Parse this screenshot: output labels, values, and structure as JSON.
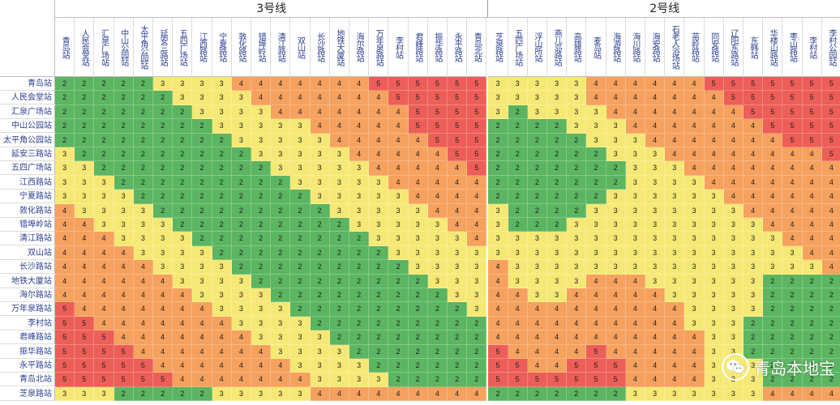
{
  "chart_data": {
    "type": "heatmap",
    "line_headers": [
      {
        "label": "3号线",
        "col_start": 0,
        "col_end": 20
      },
      {
        "label": "2号线",
        "col_start": 21,
        "col_end": 38
      }
    ],
    "columns": [
      "青岛站",
      "人民会堂站",
      "汇泉广场站",
      "中山公园站",
      "太平角公园站",
      "延安三路站",
      "五四广场站",
      "江西路站",
      "宁夏路站",
      "敦化路站",
      "错埠岭站",
      "清江路站",
      "双山站",
      "长沙路站",
      "地铁大厦站",
      "海尔路站",
      "万年泉路站",
      "李村站",
      "君峰路站",
      "振华路站",
      "永平路站",
      "青岛北站",
      "芝泉路站",
      "五四广场站",
      "浮山所站",
      "燕儿岛路站",
      "高雄路站",
      "麦岛站",
      "海游路站",
      "海川路站",
      "海安路站",
      "石老人浴场站",
      "苗岭路站",
      "同安路站",
      "辽阳东路站",
      "东韩站",
      "华楼山路站",
      "枣山路站",
      "李村站",
      "李村公园站"
    ],
    "rows": [
      "青岛站",
      "人民会堂站",
      "汇泉广场站",
      "中山公园站",
      "太平角公园站",
      "延安三路站",
      "五四广场站",
      "江西路站",
      "宁夏路站",
      "敦化路站",
      "错埠岭站",
      "清江路站",
      "双山站",
      "长沙路站",
      "地铁大厦站",
      "海尔路站",
      "万年泉路站",
      "李村站",
      "君峰路站",
      "振华路站",
      "永平路站",
      "青岛北站",
      "芝泉路站"
    ],
    "values": [
      [
        2,
        2,
        2,
        2,
        2,
        3,
        3,
        3,
        3,
        4,
        4,
        4,
        4,
        4,
        4,
        4,
        5,
        5,
        5,
        5,
        5,
        5,
        3,
        3,
        3,
        3,
        3,
        4,
        4,
        4,
        4,
        4,
        4,
        5,
        5,
        5,
        5,
        5,
        5,
        5
      ],
      [
        2,
        2,
        2,
        2,
        2,
        2,
        3,
        3,
        3,
        3,
        4,
        4,
        4,
        4,
        4,
        4,
        4,
        5,
        5,
        5,
        5,
        5,
        3,
        3,
        3,
        3,
        3,
        4,
        4,
        4,
        4,
        4,
        4,
        4,
        5,
        5,
        5,
        5,
        5,
        5
      ],
      [
        2,
        2,
        2,
        2,
        2,
        2,
        2,
        3,
        3,
        3,
        3,
        4,
        4,
        4,
        4,
        4,
        4,
        4,
        5,
        5,
        5,
        5,
        3,
        2,
        3,
        3,
        3,
        3,
        4,
        4,
        4,
        4,
        4,
        4,
        4,
        5,
        5,
        5,
        5,
        5
      ],
      [
        2,
        2,
        2,
        2,
        2,
        2,
        2,
        2,
        3,
        3,
        3,
        3,
        3,
        4,
        4,
        4,
        4,
        4,
        5,
        5,
        5,
        5,
        2,
        2,
        2,
        2,
        3,
        3,
        3,
        4,
        4,
        4,
        4,
        4,
        4,
        4,
        5,
        5,
        5,
        5
      ],
      [
        2,
        2,
        2,
        2,
        2,
        2,
        2,
        2,
        2,
        3,
        3,
        3,
        3,
        3,
        4,
        4,
        4,
        4,
        4,
        5,
        5,
        5,
        2,
        2,
        2,
        2,
        2,
        3,
        3,
        3,
        4,
        4,
        4,
        4,
        4,
        4,
        4,
        5,
        5,
        5
      ],
      [
        3,
        2,
        2,
        2,
        2,
        2,
        2,
        2,
        2,
        2,
        3,
        3,
        3,
        3,
        3,
        4,
        4,
        4,
        4,
        4,
        5,
        5,
        2,
        2,
        2,
        2,
        2,
        2,
        3,
        3,
        3,
        4,
        4,
        4,
        4,
        4,
        4,
        4,
        4,
        5
      ],
      [
        3,
        3,
        2,
        2,
        2,
        2,
        2,
        2,
        2,
        2,
        2,
        3,
        3,
        3,
        3,
        3,
        4,
        4,
        4,
        4,
        4,
        5,
        2,
        2,
        2,
        2,
        2,
        2,
        2,
        3,
        3,
        3,
        4,
        4,
        4,
        4,
        4,
        4,
        4,
        4
      ],
      [
        3,
        3,
        3,
        2,
        2,
        2,
        2,
        2,
        2,
        2,
        2,
        2,
        3,
        3,
        3,
        3,
        3,
        4,
        4,
        4,
        4,
        4,
        2,
        2,
        2,
        2,
        2,
        2,
        2,
        3,
        3,
        3,
        3,
        4,
        4,
        4,
        4,
        4,
        4,
        4
      ],
      [
        3,
        3,
        3,
        3,
        2,
        2,
        2,
        2,
        2,
        2,
        2,
        2,
        2,
        3,
        3,
        3,
        3,
        3,
        4,
        4,
        4,
        4,
        2,
        2,
        2,
        2,
        2,
        2,
        3,
        3,
        3,
        3,
        3,
        3,
        4,
        4,
        4,
        4,
        4,
        4
      ],
      [
        4,
        3,
        3,
        3,
        3,
        2,
        2,
        2,
        2,
        2,
        2,
        2,
        2,
        2,
        3,
        3,
        3,
        3,
        3,
        4,
        4,
        4,
        3,
        2,
        2,
        2,
        2,
        3,
        3,
        3,
        3,
        3,
        3,
        3,
        3,
        4,
        4,
        4,
        4,
        4
      ],
      [
        4,
        4,
        3,
        3,
        3,
        3,
        2,
        2,
        2,
        2,
        2,
        2,
        2,
        2,
        2,
        3,
        3,
        3,
        3,
        3,
        4,
        4,
        3,
        2,
        2,
        2,
        3,
        3,
        3,
        3,
        3,
        3,
        3,
        3,
        3,
        3,
        4,
        4,
        4,
        4
      ],
      [
        4,
        4,
        4,
        3,
        3,
        3,
        3,
        2,
        2,
        2,
        2,
        2,
        2,
        2,
        2,
        2,
        3,
        3,
        3,
        3,
        3,
        4,
        3,
        3,
        3,
        3,
        3,
        3,
        3,
        3,
        3,
        3,
        3,
        3,
        3,
        3,
        3,
        4,
        4,
        4
      ],
      [
        4,
        4,
        4,
        4,
        3,
        3,
        3,
        3,
        2,
        2,
        2,
        2,
        2,
        2,
        2,
        2,
        2,
        3,
        3,
        3,
        3,
        3,
        3,
        3,
        3,
        3,
        3,
        3,
        3,
        3,
        3,
        3,
        3,
        3,
        3,
        3,
        3,
        3,
        4,
        4
      ],
      [
        4,
        4,
        4,
        4,
        4,
        3,
        3,
        3,
        3,
        2,
        2,
        2,
        2,
        2,
        2,
        2,
        2,
        2,
        3,
        3,
        3,
        3,
        4,
        3,
        3,
        3,
        3,
        3,
        3,
        3,
        3,
        3,
        3,
        3,
        3,
        3,
        3,
        3,
        3,
        4
      ],
      [
        4,
        4,
        4,
        4,
        4,
        4,
        3,
        3,
        3,
        3,
        2,
        2,
        2,
        2,
        2,
        2,
        2,
        2,
        2,
        3,
        3,
        3,
        4,
        3,
        3,
        3,
        3,
        4,
        4,
        4,
        3,
        3,
        3,
        3,
        3,
        3,
        2,
        2,
        2,
        2
      ],
      [
        4,
        4,
        4,
        4,
        4,
        4,
        4,
        3,
        3,
        3,
        3,
        2,
        2,
        2,
        2,
        2,
        2,
        2,
        2,
        2,
        3,
        3,
        4,
        4,
        3,
        3,
        4,
        4,
        4,
        4,
        4,
        3,
        3,
        3,
        3,
        3,
        2,
        2,
        2,
        2
      ],
      [
        5,
        4,
        4,
        4,
        4,
        4,
        4,
        4,
        3,
        3,
        3,
        3,
        2,
        2,
        2,
        2,
        2,
        2,
        2,
        2,
        2,
        3,
        4,
        4,
        4,
        4,
        4,
        4,
        4,
        4,
        4,
        4,
        3,
        3,
        3,
        3,
        2,
        2,
        2,
        2
      ],
      [
        5,
        5,
        4,
        4,
        4,
        4,
        4,
        4,
        4,
        3,
        3,
        3,
        3,
        2,
        2,
        2,
        2,
        2,
        2,
        2,
        2,
        2,
        4,
        4,
        4,
        4,
        4,
        4,
        4,
        4,
        4,
        4,
        3,
        3,
        3,
        2,
        2,
        2,
        2,
        2
      ],
      [
        5,
        5,
        5,
        4,
        4,
        4,
        4,
        4,
        4,
        4,
        3,
        3,
        3,
        3,
        2,
        2,
        2,
        2,
        2,
        2,
        2,
        2,
        4,
        4,
        4,
        4,
        4,
        4,
        4,
        4,
        4,
        4,
        4,
        3,
        3,
        2,
        2,
        2,
        2,
        2
      ],
      [
        5,
        5,
        5,
        5,
        4,
        4,
        4,
        4,
        4,
        4,
        4,
        3,
        3,
        3,
        3,
        2,
        2,
        2,
        2,
        2,
        2,
        2,
        5,
        4,
        4,
        4,
        4,
        5,
        4,
        4,
        4,
        4,
        4,
        3,
        3,
        2,
        2,
        2,
        2,
        2
      ],
      [
        5,
        5,
        5,
        5,
        5,
        4,
        4,
        4,
        4,
        4,
        4,
        4,
        3,
        3,
        3,
        3,
        2,
        2,
        2,
        2,
        2,
        2,
        5,
        5,
        4,
        4,
        5,
        5,
        5,
        4,
        4,
        4,
        4,
        3,
        3,
        3,
        2,
        2,
        2,
        2
      ],
      [
        5,
        5,
        5,
        5,
        5,
        5,
        4,
        4,
        4,
        4,
        4,
        4,
        4,
        3,
        3,
        3,
        3,
        2,
        2,
        2,
        2,
        2,
        5,
        5,
        5,
        5,
        5,
        5,
        5,
        4,
        4,
        4,
        4,
        3,
        3,
        3,
        2,
        2,
        2,
        2
      ],
      [
        3,
        3,
        3,
        2,
        2,
        2,
        2,
        2,
        3,
        3,
        3,
        3,
        3,
        4,
        4,
        4,
        4,
        4,
        4,
        4,
        4,
        4,
        2,
        2,
        2,
        2,
        2,
        2,
        2,
        3,
        3,
        3,
        3,
        3,
        3,
        3,
        4,
        4,
        4,
        4
      ]
    ],
    "colors": {
      "2": "#5bb561",
      "3": "#f6e875",
      "4": "#f6a15e",
      "5": "#ec5e57"
    }
  },
  "watermark": {
    "text": "青岛本地宝",
    "icon": "wechat-logo-icon"
  }
}
